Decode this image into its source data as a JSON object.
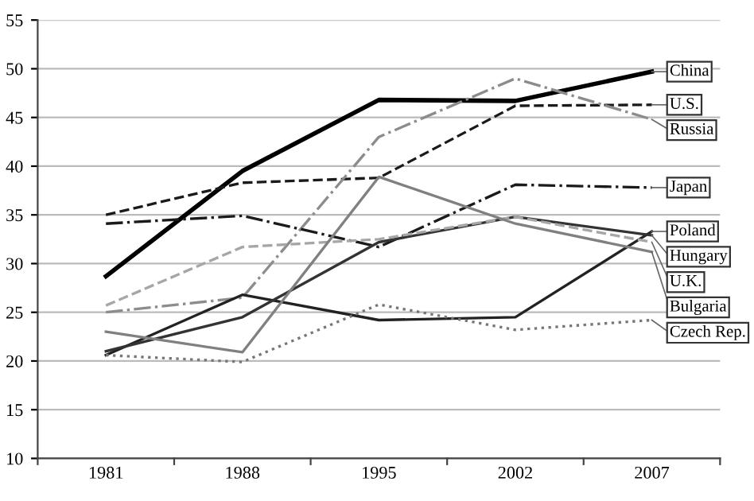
{
  "chart_data": {
    "type": "line",
    "categories": [
      "1981",
      "1988",
      "1995",
      "2002",
      "2007"
    ],
    "series": [
      {
        "name": "China",
        "color": "#000000",
        "line_style": "solid",
        "values": [
          28.7,
          39.5,
          46.8,
          46.7,
          49.7
        ]
      },
      {
        "name": "U.S.",
        "color": "#1a1a1a",
        "line_style": "dashed",
        "values": [
          35.0,
          38.3,
          38.8,
          46.2,
          46.3
        ]
      },
      {
        "name": "Russia",
        "color": "#8c8c8c",
        "line_style": "dashdot",
        "values": [
          25.0,
          26.5,
          43.0,
          49.0,
          44.8
        ]
      },
      {
        "name": "Japan",
        "color": "#1a1a1a",
        "line_style": "dashdot",
        "values": [
          34.1,
          34.9,
          31.7,
          38.1,
          37.8
        ]
      },
      {
        "name": "Poland",
        "color": "#222222",
        "line_style": "solid",
        "values": [
          20.6,
          26.8,
          24.2,
          24.5,
          33.3
        ]
      },
      {
        "name": "Hungary",
        "color": "#333333",
        "line_style": "solid",
        "values": [
          21.0,
          24.5,
          32.2,
          34.8,
          32.9
        ]
      },
      {
        "name": "U.K.",
        "color": "#a6a6a6",
        "line_style": "dashed",
        "values": [
          25.7,
          31.7,
          32.5,
          34.8,
          32.2
        ]
      },
      {
        "name": "Bulgaria",
        "color": "#808080",
        "line_style": "solid",
        "values": [
          23.0,
          20.9,
          38.9,
          34.1,
          31.2
        ]
      },
      {
        "name": "Czech Rep.",
        "color": "#777777",
        "line_style": "dotted",
        "values": [
          20.6,
          19.9,
          25.8,
          23.2,
          24.2
        ]
      }
    ],
    "ylim": [
      10,
      55
    ],
    "yticks": [
      10,
      15,
      20,
      25,
      30,
      35,
      40,
      45,
      50,
      55
    ],
    "grid": "y",
    "legend": false,
    "marker": "none"
  }
}
